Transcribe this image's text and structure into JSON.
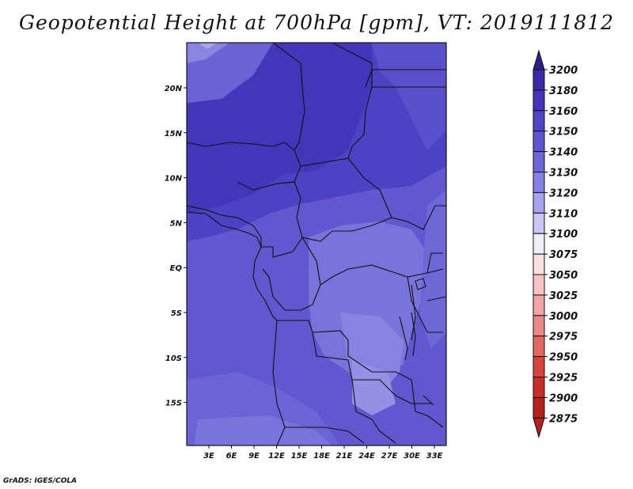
{
  "title": "Geopotential Height at 700hPa [gpm], VT: 2019111812",
  "credit": "GrADS: IGES/COLA",
  "map": {
    "lat_ticks": [
      "20N",
      "15N",
      "10N",
      "5N",
      "EQ",
      "5S",
      "10S",
      "15S"
    ],
    "lon_ticks": [
      "3E",
      "6E",
      "9E",
      "12E",
      "15E",
      "18E",
      "21E",
      "24E",
      "27E",
      "30E",
      "33E"
    ]
  },
  "colorbar": {
    "levels": [
      "3200",
      "3180",
      "3160",
      "3150",
      "3140",
      "3130",
      "3120",
      "3110",
      "3100",
      "3075",
      "3050",
      "3025",
      "3000",
      "2975",
      "2950",
      "2925",
      "2900",
      "2875"
    ],
    "colors": [
      "#2d1e8c",
      "#3a2aa8",
      "#4534bb",
      "#5244c8",
      "#5e54cf",
      "#6c66d8",
      "#8580e2",
      "#a7a3ec",
      "#c9c6f4",
      "#f0eef9",
      "#fbe0e0",
      "#f6c4c4",
      "#f0a6a6",
      "#ea8a88",
      "#e26865",
      "#d6453f",
      "#c72e28",
      "#b3221d"
    ]
  }
}
